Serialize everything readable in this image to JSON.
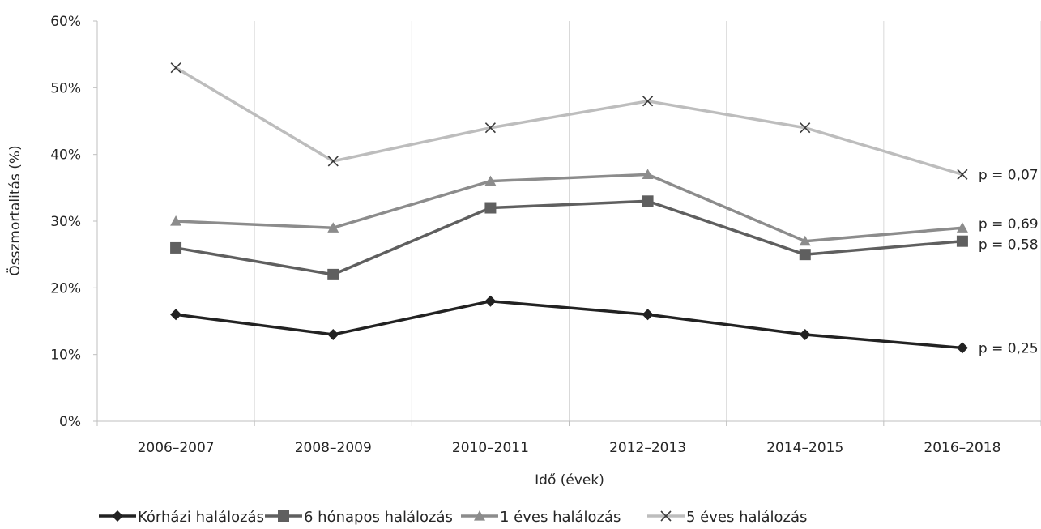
{
  "chart_data": {
    "type": "line",
    "xlabel": "Idő (évek)",
    "ylabel": "Összmortalitás (%)",
    "categories": [
      "2006–2007",
      "2008–2009",
      "2010–2011",
      "2012–2013",
      "2014–2015",
      "2016–2018"
    ],
    "y_ticks": [
      "0%",
      "10%",
      "20%",
      "30%",
      "40%",
      "50%",
      "60%"
    ],
    "ylim": [
      0,
      60
    ],
    "grid": "vertical",
    "legend_position": "bottom",
    "series": [
      {
        "name": "Kórházi halálozás",
        "values": [
          16,
          13,
          18,
          16,
          13,
          11
        ],
        "color": "#222222",
        "marker": "diamond",
        "p_label": "p = 0,25"
      },
      {
        "name": "6 hónapos halálozás",
        "values": [
          26,
          22,
          32,
          33,
          25,
          27
        ],
        "color": "#5f5f5f",
        "marker": "square",
        "p_label": "p = 0,58"
      },
      {
        "name": "1 éves halálozás",
        "values": [
          30,
          29,
          36,
          37,
          27,
          29
        ],
        "color": "#8c8c8c",
        "marker": "triangle",
        "p_label": "p = 0,69"
      },
      {
        "name": "5 éves halálozás",
        "values": [
          53,
          39,
          44,
          48,
          44,
          37
        ],
        "color": "#bdbdbd",
        "marker": "x",
        "p_label": "p = 0,07"
      }
    ]
  }
}
